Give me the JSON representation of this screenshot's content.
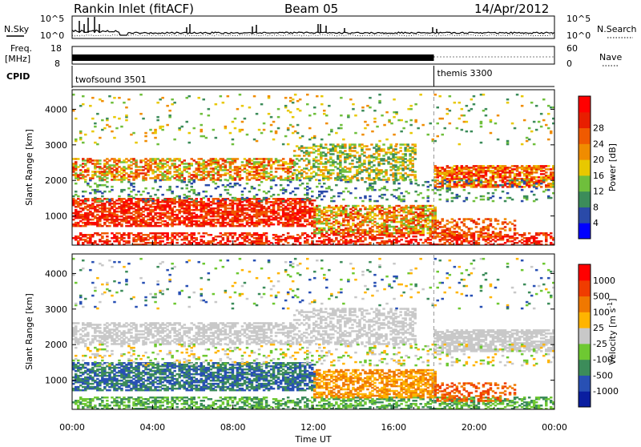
{
  "header": {
    "station": "Rankin Inlet (fitACF)",
    "beam": "Beam 05",
    "date": "14/Apr/2012"
  },
  "top_panels": {
    "nsky_label": "N.Sky",
    "nsky_ticks": [
      "10^5",
      "10^0"
    ],
    "nsearch_label": "N.Search",
    "nsearch_ticks": [
      "10^5",
      "10^0"
    ],
    "freq_label_1": "Freq.",
    "freq_label_2": "[MHz]",
    "freq_ticks": [
      "18",
      "8"
    ],
    "nave_label": "Nave",
    "nave_ticks": [
      "60",
      "0"
    ],
    "cpid_label": "CPID",
    "cpid_mode_1": "twofsound 3501",
    "cpid_mode_2": "themis 3300",
    "mode_switch_hour": 18
  },
  "chart_data": [
    {
      "type": "heatmap",
      "name": "power",
      "ylabel": "Slant Range [km]",
      "xlabel": "",
      "yticks": [
        "1000",
        "2000",
        "3000",
        "4000"
      ],
      "ylim": [
        180,
        4550
      ],
      "xlim_hours": [
        0,
        24
      ],
      "colorbar": {
        "label": "Power [dB]",
        "ticks": [
          "4",
          "8",
          "12",
          "16",
          "20",
          "24",
          "28"
        ],
        "colors": [
          "#0000ff",
          "#2a4aa8",
          "#3c8c5a",
          "#6fbf3c",
          "#e8c800",
          "#f08c00",
          "#f05a00",
          "#e81e00",
          "#ff0000"
        ]
      }
    },
    {
      "type": "heatmap",
      "name": "velocity",
      "ylabel": "Slant Range [km]",
      "xlabel": "Time UT",
      "yticks": [
        "1000",
        "2000",
        "3000",
        "4000"
      ],
      "ylim": [
        180,
        4550
      ],
      "xlim_hours": [
        0,
        24
      ],
      "xticks": [
        "00:00",
        "04:00",
        "08:00",
        "12:00",
        "16:00",
        "20:00",
        "00:00"
      ],
      "colorbar": {
        "label": "Velocity [m s",
        "label_sup": "-1",
        "label_end": "]",
        "ticks": [
          "1000",
          "500",
          "100",
          "25",
          "-25",
          "-100",
          "-500",
          "-1000"
        ],
        "colors": [
          "#0a1ea0",
          "#2850b4",
          "#3c8c5a",
          "#6ec832",
          "#c8c8c8",
          "#ffb400",
          "#f07800",
          "#f03c00",
          "#ff0000"
        ]
      }
    }
  ]
}
